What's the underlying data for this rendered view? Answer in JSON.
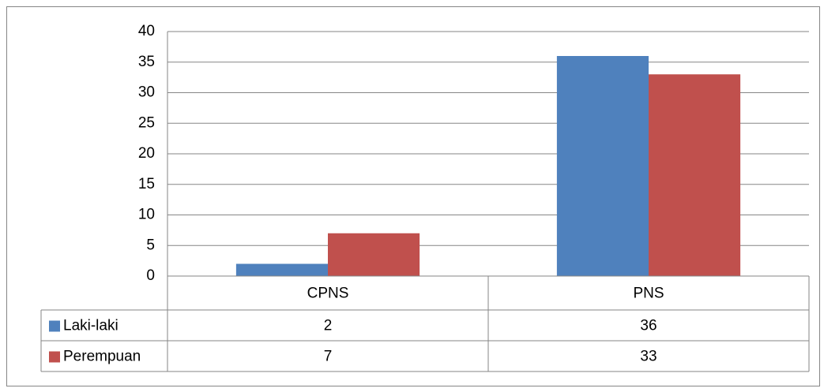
{
  "chart_data": {
    "type": "bar",
    "categories": [
      "CPNS",
      "PNS"
    ],
    "series": [
      {
        "name": "Laki-laki",
        "color": "#4f81bd",
        "values": [
          2,
          36
        ]
      },
      {
        "name": "Perempuan",
        "color": "#c0504d",
        "values": [
          7,
          33
        ]
      }
    ],
    "ylim": [
      0,
      40
    ],
    "yticks": [
      0,
      5,
      10,
      15,
      20,
      25,
      30,
      35,
      40
    ],
    "grid": true
  }
}
